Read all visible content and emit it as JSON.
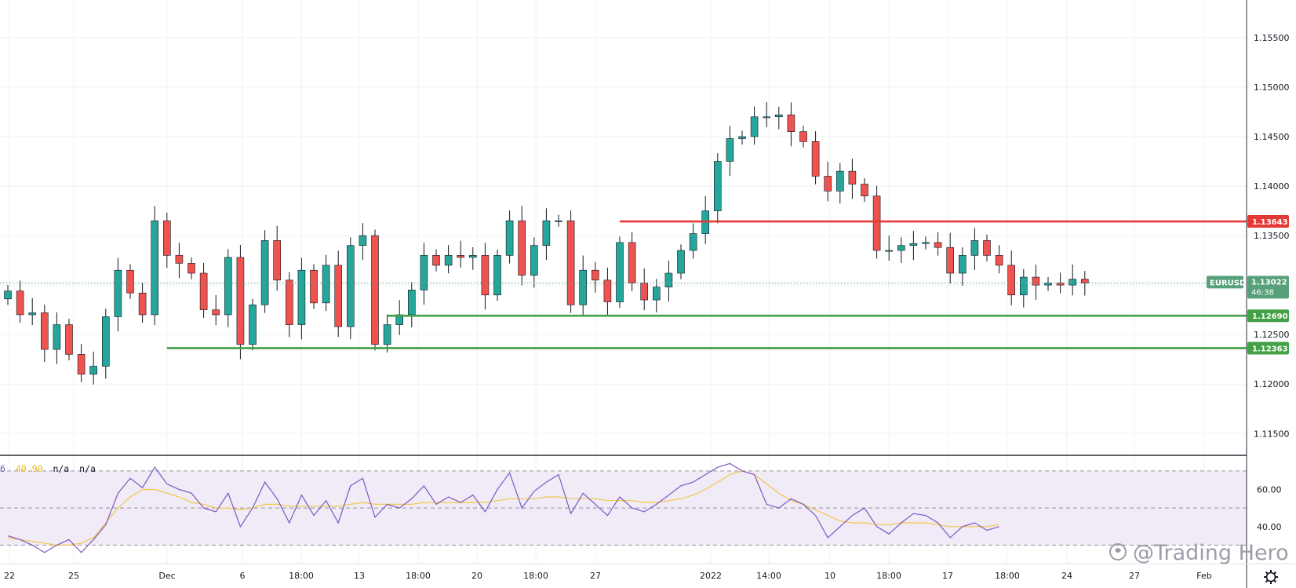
{
  "symbol": "EURUSD",
  "watermark": "@Trading Hero",
  "colors": {
    "bull": "#26a69a",
    "bear": "#ef5350",
    "support": "#43a047",
    "resistance": "#e53935",
    "rsi": "#7e57c2",
    "rsi_ma": "#f1c84b",
    "rsi_band": "#ede7f6",
    "current": "#56a07a"
  },
  "indicator_legend": {
    "period": "6",
    "value": "40.90",
    "na1": "n/a",
    "na2": "n/a"
  },
  "current_price": {
    "price": "1.13022",
    "countdown": "46:38",
    "value": 1.13022
  },
  "chart_data": [
    {
      "type": "candlestick",
      "title": "",
      "xlabel": "",
      "ylabel": "",
      "ylim": [
        1.1128,
        1.1588
      ],
      "grid": true,
      "price_axis": "right",
      "y_ticks": [
        "1.11500",
        "1.12000",
        "1.12500",
        "1.13500",
        "1.14000",
        "1.14500",
        "1.15000",
        "1.15500"
      ],
      "x_ticks": [
        "22",
        "25",
        "Dec",
        "6",
        "18:00",
        "13",
        "18:00",
        "20",
        "18:00",
        "27",
        "2022",
        "14:00",
        "10",
        "18:00",
        "17",
        "18:00",
        "24",
        "27",
        "Feb"
      ],
      "levels": [
        {
          "price": "1.13643",
          "value": 1.13643,
          "role": "resistance",
          "from_index": 50
        },
        {
          "price": "1.12690",
          "value": 1.1269,
          "role": "support",
          "from_index": 31
        },
        {
          "price": "1.12363",
          "value": 1.12363,
          "role": "support",
          "from_index": 13
        }
      ],
      "close": [
        1.1294,
        1.127,
        1.1272,
        1.1235,
        1.126,
        1.123,
        1.121,
        1.1218,
        1.1268,
        1.1315,
        1.1292,
        1.127,
        1.1365,
        1.133,
        1.1322,
        1.1312,
        1.1275,
        1.127,
        1.1328,
        1.124,
        1.128,
        1.1345,
        1.1305,
        1.126,
        1.1315,
        1.1282,
        1.132,
        1.1258,
        1.134,
        1.135,
        1.124,
        1.126,
        1.127,
        1.1295,
        1.133,
        1.132,
        1.133,
        1.1328,
        1.133,
        1.129,
        1.133,
        1.1365,
        1.131,
        1.134,
        1.1365,
        1.1365,
        1.128,
        1.1315,
        1.1305,
        1.1283,
        1.1343,
        1.1302,
        1.1285,
        1.1298,
        1.1312,
        1.1335,
        1.1352,
        1.1375,
        1.1425,
        1.1448,
        1.145,
        1.147,
        1.147,
        1.1472,
        1.1455,
        1.1445,
        1.141,
        1.1395,
        1.1415,
        1.1402,
        1.139,
        1.1335,
        1.1335,
        1.134,
        1.1342,
        1.1343,
        1.1338,
        1.1312,
        1.133,
        1.1345,
        1.133,
        1.132,
        1.129,
        1.1308,
        1.13,
        1.1302,
        1.13,
        1.1306,
        1.1302
      ],
      "rsi": {
        "ylim": [
          20,
          78
        ],
        "upper_band": 70,
        "lower_band": 30,
        "mid": 50,
        "y_ticks": [
          "60.00",
          "40.00"
        ],
        "values": [
          35,
          33,
          30,
          26,
          30,
          33,
          26,
          33,
          41,
          58,
          66,
          61,
          72,
          63,
          60,
          58,
          50,
          48,
          58,
          40,
          50,
          64,
          55,
          42,
          57,
          46,
          54,
          42,
          62,
          66,
          45,
          52,
          50,
          55,
          62,
          52,
          56,
          53,
          57,
          48,
          60,
          69,
          50,
          59,
          64,
          68,
          47,
          58,
          52,
          46,
          56,
          50,
          48,
          52,
          57,
          62,
          64,
          68,
          72,
          74,
          70,
          68,
          52,
          50,
          55,
          52,
          46,
          34,
          40,
          46,
          50,
          40,
          36,
          42,
          47,
          46,
          42,
          34,
          40,
          42,
          38,
          40
        ],
        "ma": [
          34,
          33,
          32,
          31,
          30,
          30,
          31,
          34,
          42,
          50,
          56,
          60,
          60,
          58,
          56,
          53,
          52,
          50,
          50,
          49,
          50,
          52,
          52,
          51,
          51,
          51,
          51,
          51,
          52,
          53,
          52,
          52,
          52,
          52,
          53,
          53,
          53,
          53,
          53,
          53,
          54,
          55,
          55,
          55,
          56,
          56,
          55,
          55,
          55,
          54,
          54,
          54,
          53,
          53,
          54,
          55,
          57,
          60,
          64,
          68,
          70,
          68,
          63,
          58,
          54,
          52,
          49,
          46,
          43,
          42,
          42,
          41,
          41,
          42,
          42,
          42,
          41,
          40,
          40,
          40,
          40,
          41
        ]
      }
    }
  ]
}
